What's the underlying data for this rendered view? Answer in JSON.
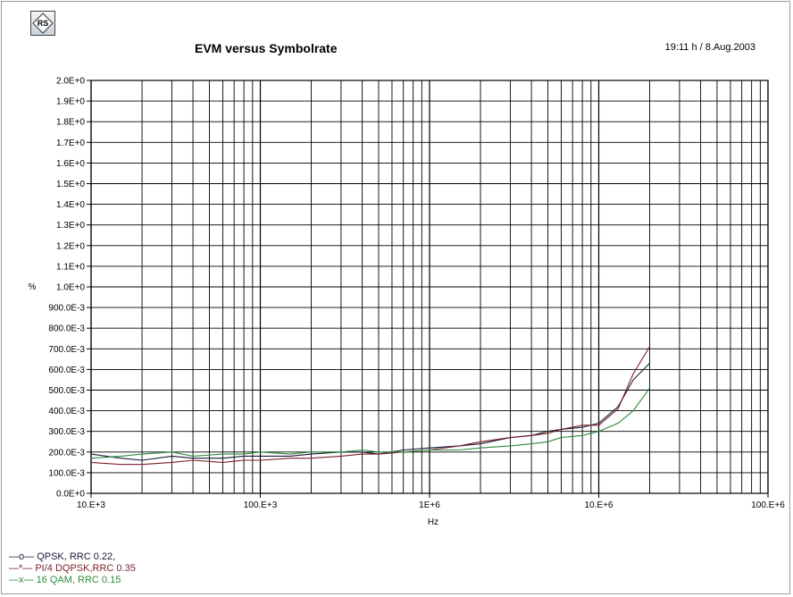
{
  "header": {
    "title": "EVM versus Symbolrate",
    "timestamp": "19:11 h / 8.Aug.2003",
    "logo_text": "RS"
  },
  "chart_data": {
    "type": "line",
    "title": "EVM versus Symbolrate",
    "xlabel": "Hz",
    "ylabel": "%",
    "x_scale": "log",
    "xlim": [
      10000,
      100000000
    ],
    "ylim": [
      0,
      2.0
    ],
    "grid": true,
    "x_ticks": [
      10000,
      100000,
      1000000,
      10000000,
      100000000
    ],
    "x_tick_labels": [
      "10.E+3",
      "100.E+3",
      "1E+6",
      "10.E+6",
      "100.E+6"
    ],
    "y_ticks": [
      0,
      0.1,
      0.2,
      0.3,
      0.4,
      0.5,
      0.6,
      0.7,
      0.8,
      0.9,
      1.0,
      1.1,
      1.2,
      1.3,
      1.4,
      1.5,
      1.6,
      1.7,
      1.8,
      1.9,
      2.0
    ],
    "y_tick_labels": [
      "0.0E+0",
      "100.0E-3",
      "200.0E-3",
      "300.0E-3",
      "400.0E-3",
      "500.0E-3",
      "600.0E-3",
      "700.0E-3",
      "800.0E-3",
      "900.0E-3",
      "1.0E+0",
      "1.1E+0",
      "1.2E+0",
      "1.3E+0",
      "1.4E+0",
      "1.5E+0",
      "1.6E+0",
      "1.7E+0",
      "1.8E+0",
      "1.9E+0",
      "2.0E+0"
    ],
    "legend_position": "bottom-left",
    "series": [
      {
        "name": "QPSK, RRC 0.22,",
        "marker": "o",
        "color": "#1a1a3c",
        "x": [
          10000,
          15000,
          20000,
          30000,
          40000,
          60000,
          80000,
          100000,
          150000,
          200000,
          300000,
          400000,
          500000,
          700000,
          1000000,
          1500000,
          2000000,
          3000000,
          4000000,
          5000000,
          6000000,
          8000000,
          10000000,
          13000000,
          16000000,
          20000000
        ],
        "values": [
          0.19,
          0.17,
          0.16,
          0.18,
          0.17,
          0.17,
          0.18,
          0.18,
          0.18,
          0.19,
          0.2,
          0.2,
          0.19,
          0.21,
          0.22,
          0.23,
          0.24,
          0.27,
          0.28,
          0.3,
          0.31,
          0.32,
          0.34,
          0.42,
          0.55,
          0.63
        ]
      },
      {
        "name": "PI/4 DQPSK,RRC 0.35",
        "marker": "*",
        "color": "#7a1f2a",
        "x": [
          10000,
          15000,
          20000,
          30000,
          40000,
          60000,
          80000,
          100000,
          150000,
          200000,
          300000,
          400000,
          500000,
          700000,
          1000000,
          1500000,
          2000000,
          3000000,
          4000000,
          5000000,
          6000000,
          8000000,
          10000000,
          13000000,
          16000000,
          20000000
        ],
        "values": [
          0.15,
          0.14,
          0.14,
          0.15,
          0.16,
          0.15,
          0.16,
          0.16,
          0.17,
          0.17,
          0.18,
          0.19,
          0.19,
          0.2,
          0.21,
          0.23,
          0.25,
          0.27,
          0.28,
          0.29,
          0.31,
          0.33,
          0.33,
          0.41,
          0.58,
          0.71
        ]
      },
      {
        "name": "16 QAM, RRC 0.15",
        "marker": "x",
        "color": "#2e8b3a",
        "x": [
          10000,
          15000,
          20000,
          30000,
          40000,
          60000,
          80000,
          100000,
          150000,
          200000,
          300000,
          400000,
          500000,
          700000,
          1000000,
          1500000,
          2000000,
          3000000,
          4000000,
          5000000,
          6000000,
          8000000,
          10000000,
          13000000,
          16000000,
          20000000
        ],
        "values": [
          0.17,
          0.18,
          0.19,
          0.2,
          0.18,
          0.19,
          0.19,
          0.2,
          0.19,
          0.2,
          0.2,
          0.21,
          0.2,
          0.2,
          0.21,
          0.21,
          0.22,
          0.23,
          0.24,
          0.25,
          0.27,
          0.28,
          0.3,
          0.34,
          0.4,
          0.51
        ]
      }
    ]
  }
}
